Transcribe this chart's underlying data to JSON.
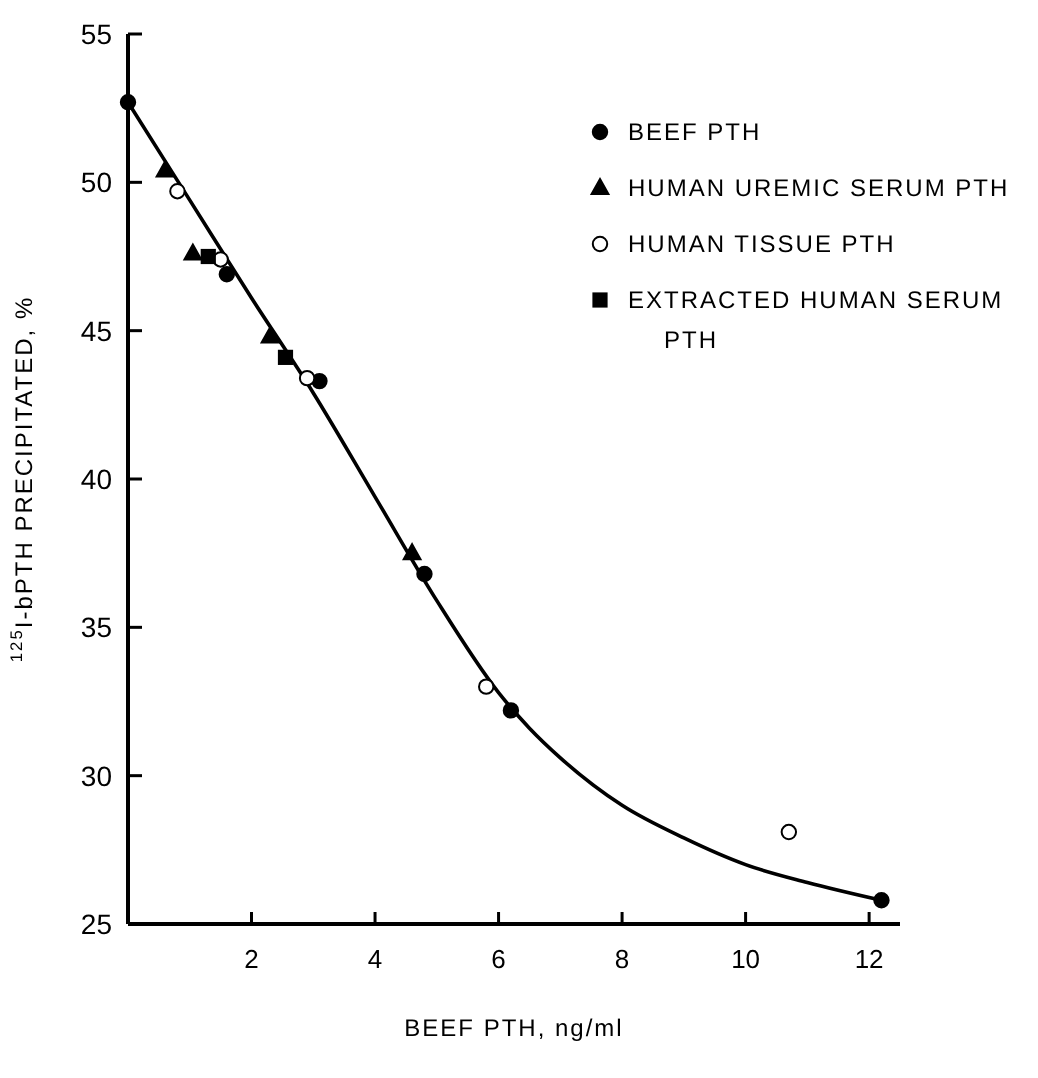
{
  "chart_data": {
    "type": "scatter",
    "xlabel": "BEEF PTH, ng/ml",
    "ylabel": "$^{125}$I-bPTH  PRECIPITATED, %",
    "xlim": [
      0,
      12.5
    ],
    "ylim": [
      25,
      55
    ],
    "xticks": [
      2,
      4,
      6,
      8,
      10,
      12
    ],
    "yticks": [
      25,
      30,
      35,
      40,
      45,
      50,
      55
    ],
    "grid": false,
    "legend": "top right",
    "series": [
      {
        "type": "line",
        "color": "#000000",
        "marker": "none",
        "line_style": "solid",
        "x": [
          0,
          1,
          2,
          3,
          4,
          5,
          6,
          6.5,
          7,
          8,
          9,
          10,
          11,
          12.2
        ],
        "values": [
          52.7,
          49.4,
          46.1,
          42.9,
          39.4,
          35.9,
          32.8,
          31.6,
          30.6,
          29.0,
          27.9,
          27.0,
          26.4,
          25.8
        ]
      },
      {
        "name": "BEEF PTH",
        "color": "#000000",
        "marker": "circle",
        "x": [
          0,
          1.6,
          3.1,
          4.8,
          6.2,
          12.2
        ],
        "values": [
          52.7,
          46.9,
          43.3,
          36.8,
          32.2,
          25.8
        ]
      },
      {
        "name": "HUMAN UREMIC SERUM PTH",
        "color": "#000000",
        "marker": "triangle",
        "x": [
          0.6,
          1.05,
          2.3,
          4.6
        ],
        "values": [
          50.4,
          47.6,
          44.8,
          37.5
        ]
      },
      {
        "name": "HUMAN TISSUE PTH",
        "color": "#ffffff",
        "marker": "circle",
        "x": [
          0.8,
          1.5,
          2.9,
          5.8,
          10.7
        ],
        "values": [
          49.7,
          47.4,
          43.4,
          33.0,
          28.1
        ]
      },
      {
        "name": "EXTRACTED HUMAN SERUM PTH",
        "color": "#000000",
        "marker": "square",
        "x": [
          1.3,
          2.55
        ],
        "values": [
          47.5,
          44.1
        ]
      }
    ]
  }
}
